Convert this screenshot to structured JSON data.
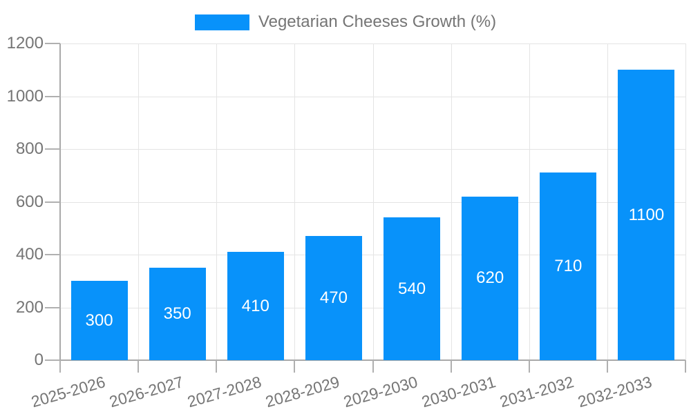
{
  "legend": {
    "label": "Vegetarian Cheeses Growth (%)"
  },
  "chart_data": {
    "type": "bar",
    "title": "",
    "series_name": "Vegetarian Cheeses Growth (%)",
    "categories": [
      "2025-2026",
      "2026-2027",
      "2027-2028",
      "2028-2029",
      "2029-2030",
      "2030-2031",
      "2031-2032",
      "2032-2033"
    ],
    "values": [
      300,
      350,
      410,
      470,
      540,
      620,
      710,
      1100
    ],
    "xlabel": "",
    "ylabel": "",
    "ylim": [
      0,
      1200
    ],
    "ytick_step": 200,
    "ytick_labels": [
      "0",
      "200",
      "400",
      "600",
      "800",
      "1000",
      "1200"
    ],
    "grid": true,
    "legend_position": "top",
    "bar_labels_inside": true,
    "x_label_rotation_deg": -16
  },
  "colors": {
    "bar": "#0892FA",
    "value_label": "#FFFFFF",
    "axis_text": "#757575",
    "gridline": "#E4E4E4",
    "axis_line": "#A9A9A9",
    "background": "#FFFFFF"
  }
}
